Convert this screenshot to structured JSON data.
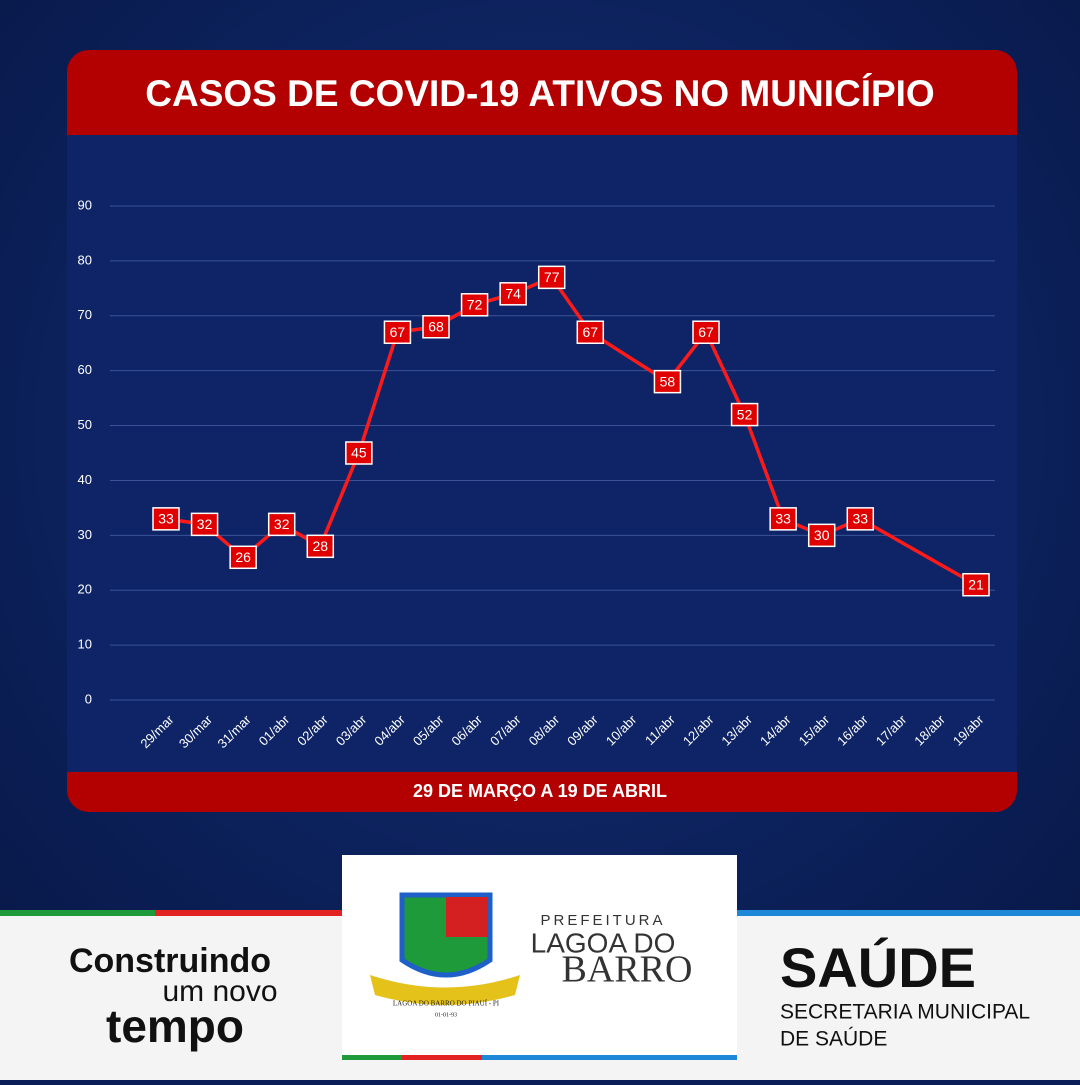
{
  "chart_data": {
    "type": "line",
    "title": "CASOS DE COVID-19 ATIVOS NO MUNICÍPIO",
    "subtitle": "29 DE MARÇO A 19 DE ABRIL",
    "categories": [
      "29/mar",
      "30/mar",
      "31/mar",
      "01/abr",
      "02/abr",
      "03/abr",
      "04/abr",
      "05/abr",
      "06/abr",
      "07/abr",
      "08/abr",
      "09/abr",
      "10/abr",
      "11/abr",
      "12/abr",
      "13/abr",
      "14/abr",
      "15/abr",
      "16/abr",
      "17/abr",
      "18/abr",
      "19/abr"
    ],
    "values": [
      33,
      32,
      26,
      32,
      28,
      45,
      67,
      68,
      72,
      74,
      77,
      67,
      null,
      58,
      67,
      52,
      33,
      30,
      33,
      null,
      null,
      21
    ],
    "color": "#ff1a1a",
    "ylim": [
      0,
      90
    ],
    "yticks": [
      0,
      10,
      20,
      30,
      40,
      50,
      60,
      70,
      80,
      90
    ],
    "grid": true
  },
  "footer": {
    "left": {
      "line1": "Construindo",
      "line2": "um novo",
      "line3": "tempo"
    },
    "center": {
      "line1": "PREFEITURA",
      "line2": "LAGOA DO",
      "line3": "BARRO",
      "crest_text": "LAGOA DO BARRO DO PIAUÍ - PI",
      "crest_date": "01-01-93"
    },
    "right": {
      "title": "SAÚDE",
      "line1": "SECRETARIA MUNICIPAL",
      "line2": "DE SAÚDE"
    }
  }
}
